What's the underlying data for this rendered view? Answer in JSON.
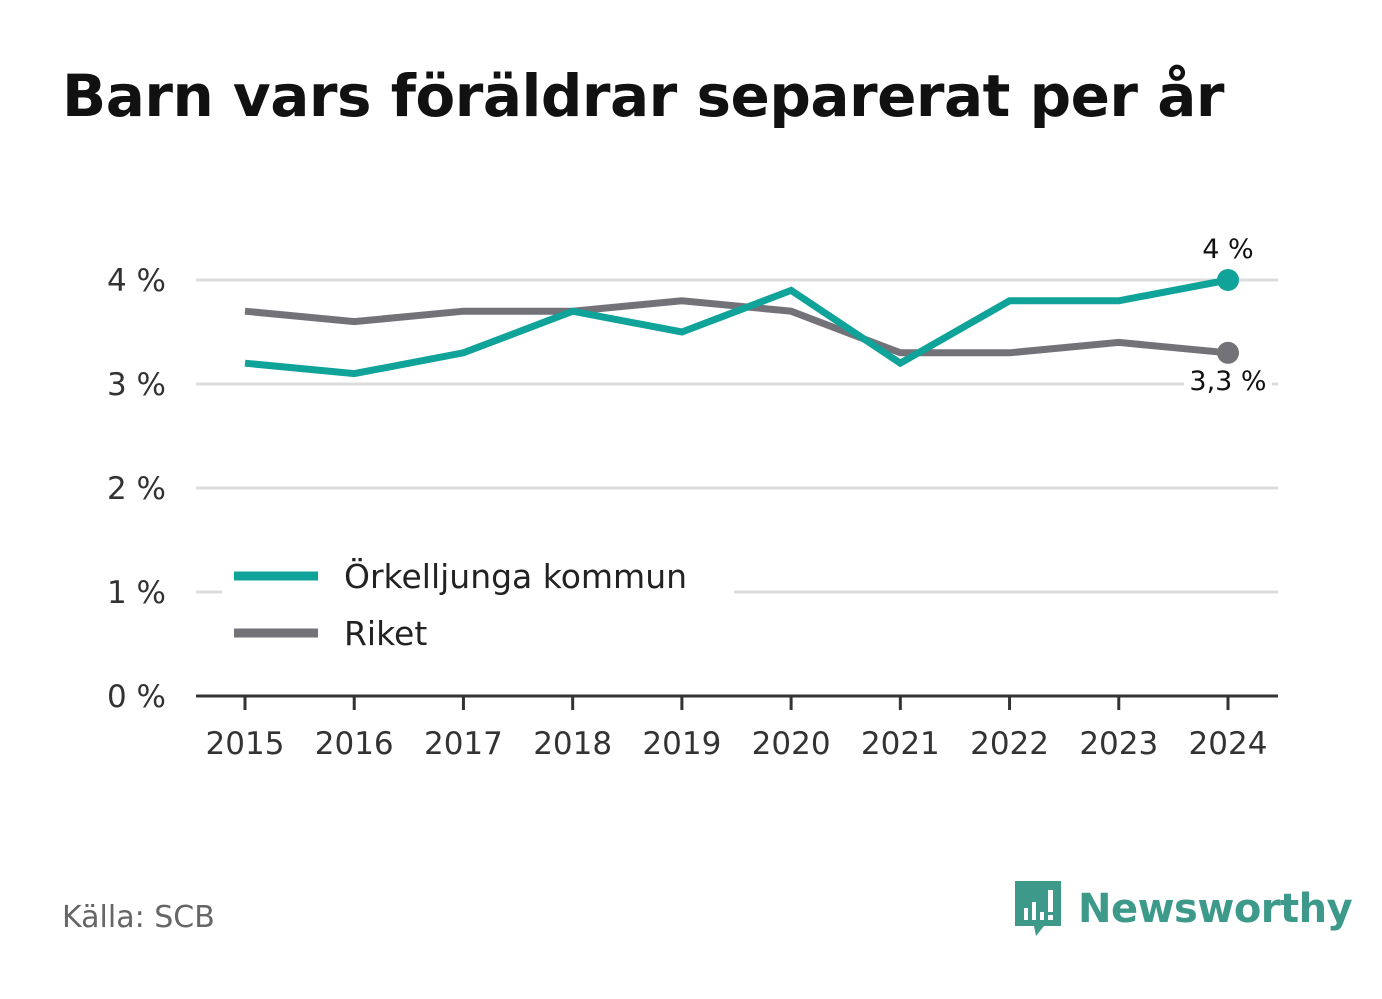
{
  "title": "Barn vars föräldrar separerat per år",
  "source": "Källa: SCB",
  "brand": "Newsworthy",
  "colors": {
    "series_teal": "#0fa399",
    "series_gray": "#737278",
    "grid": "#dcdcdc",
    "axis": "#333333",
    "brand": "#3d9a8b"
  },
  "chart_data": {
    "type": "line",
    "title": "Barn vars föräldrar separerat per år",
    "xlabel": "",
    "ylabel": "",
    "x": [
      "2015",
      "2016",
      "2017",
      "2018",
      "2019",
      "2020",
      "2021",
      "2022",
      "2023",
      "2024"
    ],
    "ylim": [
      0,
      4
    ],
    "yticks": [
      0,
      1,
      2,
      3,
      4
    ],
    "ytick_labels": [
      "0 %",
      "1 %",
      "2 %",
      "3 %",
      "4 %"
    ],
    "grid": true,
    "legend_position": "lower-left",
    "series": [
      {
        "name": "Örkelljunga kommun",
        "color": "#0fa399",
        "values": [
          3.2,
          3.1,
          3.3,
          3.7,
          3.5,
          3.9,
          3.2,
          3.8,
          3.8,
          4.0
        ],
        "end_label": "4 %"
      },
      {
        "name": "Riket",
        "color": "#737278",
        "values": [
          3.7,
          3.6,
          3.7,
          3.7,
          3.8,
          3.7,
          3.3,
          3.3,
          3.4,
          3.3
        ],
        "end_label": "3,3 %"
      }
    ]
  }
}
